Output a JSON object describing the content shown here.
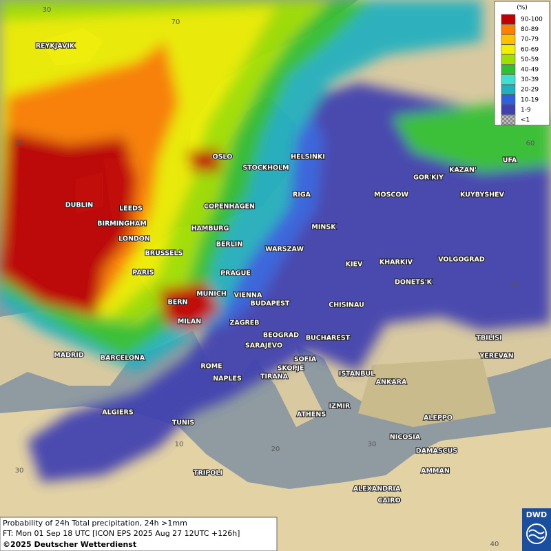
{
  "map": {
    "cities": [
      "REYKJAVIK",
      "OSLO",
      "STOCKHOLM",
      "HELSINKI",
      "DUBLIN",
      "LEEDS",
      "BIRMINGHAM",
      "LONDON",
      "RIGA",
      "COPENHAGEN",
      "HAMBURG",
      "MINSK",
      "MOSCOW",
      "GOR'KIY",
      "KAZAN'",
      "UFA",
      "KUYBYSHEV",
      "BERLIN",
      "WARSZAW",
      "BRUSSELS",
      "KIEV",
      "KHARKIV",
      "VOLGOGRAD",
      "PARIS",
      "PRAGUE",
      "DONETS'K",
      "MUNICH",
      "VIENNA",
      "BERN",
      "BUDAPEST",
      "CHISINAU",
      "MILAN",
      "ZAGREB",
      "TBILISI",
      "BEOGRAD",
      "BUCHAREST",
      "MADRID",
      "BARCELONA",
      "SARAJEVO",
      "SOFIA",
      "YEREVAN",
      "ROME",
      "SKOPJE",
      "ISTANBUL",
      "NAPLES",
      "TIRANA",
      "ANKARA",
      "ALGIERS",
      "ATHENS",
      "IZMIR",
      "ALEPPO",
      "TUNIS",
      "NICOSIA",
      "DAMASCUS",
      "TRIPOLI",
      "AMMAN",
      "ALEXANDRIA",
      "CAIRO"
    ],
    "grid_labels": [
      "30",
      "70",
      "60",
      "50",
      "40",
      "20",
      "10",
      "20",
      "30",
      "30"
    ]
  },
  "legend": {
    "title": "(%)",
    "entries": [
      {
        "label": "90-100",
        "color": "#c00000"
      },
      {
        "label": "80-89",
        "color": "#ff8000"
      },
      {
        "label": "70-79",
        "color": "#ffc000"
      },
      {
        "label": "60-69",
        "color": "#f0f000"
      },
      {
        "label": "50-59",
        "color": "#a0e000"
      },
      {
        "label": "40-49",
        "color": "#30c030"
      },
      {
        "label": "30-39",
        "color": "#40e0d0"
      },
      {
        "label": "20-29",
        "color": "#20b0c0"
      },
      {
        "label": "10-19",
        "color": "#3060e0"
      },
      {
        "label": "1-9",
        "color": "#4040b0"
      },
      {
        "label": "<1",
        "color": "#999999"
      }
    ]
  },
  "footer": {
    "line1": "Probability of 24h Total precipitation, 24h >1mm",
    "line2": "FT: Mon 01 Sep 18 UTC [ICON EPS 2025 Aug 27 12UTC +126h]",
    "line3": "©2025 Deutscher Wetterdienst"
  },
  "logo": "DWD"
}
